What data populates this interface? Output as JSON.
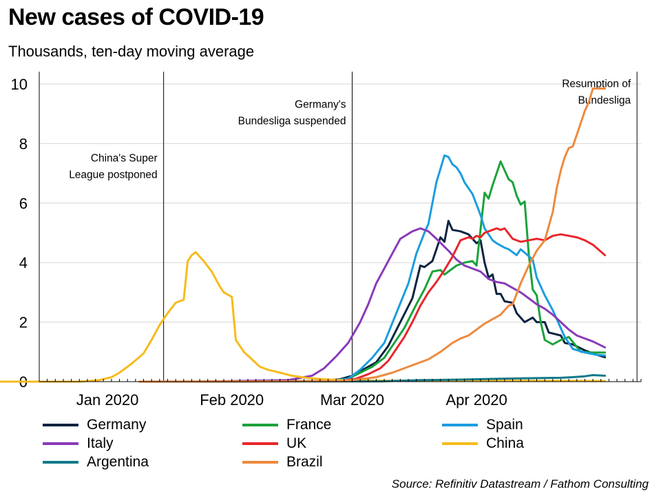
{
  "title": "New cases of COVID-19",
  "subtitle": "Thousands, ten-day moving average",
  "source": "Source: Refinitiv Datastream / Fathom Consulting",
  "chart_data": {
    "type": "line",
    "title": "New cases of COVID-19",
    "ylabel": "Thousands, ten-day moving average",
    "ylim": [
      0,
      10
    ],
    "yticks": [
      "0",
      "2",
      "4",
      "6",
      "8",
      "10"
    ],
    "xlim": [
      0,
      150
    ],
    "xticks": [
      {
        "label": "Jan 2020",
        "x": 17
      },
      {
        "label": "Feb 2020",
        "x": 48
      },
      {
        "label": "Mar 2020",
        "x": 78
      },
      {
        "label": "Apr 2020",
        "x": 109
      }
    ],
    "events": [
      {
        "x": 31,
        "lines": [
          "China's Super",
          "League postponed"
        ],
        "ytop": 7.4,
        "anchor": "end"
      },
      {
        "x": 78,
        "lines": [
          "Germany's",
          "Bundesliga suspended"
        ],
        "ytop": 9.2,
        "anchor": "end"
      },
      {
        "x": 149,
        "lines": [
          "Resumption of",
          "Bundesliga"
        ],
        "ytop": 9.9,
        "anchor": "end"
      }
    ],
    "series": [
      {
        "name": "Germany",
        "color": "#0b2440",
        "points": [
          [
            40,
            0
          ],
          [
            70,
            0.02
          ],
          [
            75,
            0.08
          ],
          [
            78,
            0.2
          ],
          [
            80,
            0.35
          ],
          [
            84,
            0.65
          ],
          [
            87,
            1.2
          ],
          [
            90,
            2.0
          ],
          [
            93,
            2.8
          ],
          [
            95,
            3.9
          ],
          [
            96,
            3.85
          ],
          [
            98,
            4.05
          ],
          [
            100,
            4.85
          ],
          [
            101,
            4.7
          ],
          [
            102,
            5.4
          ],
          [
            103,
            5.1
          ],
          [
            105,
            5.05
          ],
          [
            107,
            4.95
          ],
          [
            109,
            4.65
          ],
          [
            110,
            4.75
          ],
          [
            111,
            4.0
          ],
          [
            112,
            3.5
          ],
          [
            113,
            3.6
          ],
          [
            114,
            2.95
          ],
          [
            115,
            2.95
          ],
          [
            116,
            2.7
          ],
          [
            118,
            2.65
          ],
          [
            119,
            2.3
          ],
          [
            121,
            2.0
          ],
          [
            123,
            2.15
          ],
          [
            124,
            2.0
          ],
          [
            126,
            2.0
          ],
          [
            127,
            1.65
          ],
          [
            130,
            1.55
          ],
          [
            131,
            1.3
          ],
          [
            133,
            1.25
          ],
          [
            136,
            1.05
          ],
          [
            139,
            0.9
          ],
          [
            141,
            0.82
          ]
        ]
      },
      {
        "name": "France",
        "color": "#1aa33a",
        "points": [
          [
            40,
            0
          ],
          [
            72,
            0.02
          ],
          [
            77,
            0.1
          ],
          [
            80,
            0.3
          ],
          [
            83,
            0.5
          ],
          [
            86,
            0.8
          ],
          [
            88,
            1.2
          ],
          [
            91,
            1.8
          ],
          [
            94,
            2.6
          ],
          [
            96,
            3.1
          ],
          [
            98,
            3.7
          ],
          [
            100,
            3.75
          ],
          [
            101,
            3.6
          ],
          [
            104,
            3.9
          ],
          [
            106,
            4.0
          ],
          [
            108,
            4.05
          ],
          [
            109,
            3.9
          ],
          [
            111,
            6.35
          ],
          [
            112,
            6.15
          ],
          [
            113,
            6.6
          ],
          [
            115,
            7.4
          ],
          [
            116,
            7.1
          ],
          [
            117,
            6.8
          ],
          [
            118,
            6.7
          ],
          [
            119,
            6.25
          ],
          [
            120,
            5.95
          ],
          [
            121,
            6.05
          ],
          [
            122,
            4.3
          ],
          [
            123,
            3.1
          ],
          [
            124,
            2.9
          ],
          [
            125,
            2.0
          ],
          [
            126,
            1.4
          ],
          [
            128,
            1.25
          ],
          [
            130,
            1.4
          ],
          [
            132,
            1.5
          ],
          [
            135,
            1.0
          ],
          [
            138,
            0.98
          ],
          [
            141,
            0.98
          ]
        ]
      },
      {
        "name": "Spain",
        "color": "#1b9de0",
        "points": [
          [
            40,
            0
          ],
          [
            72,
            0.02
          ],
          [
            77,
            0.1
          ],
          [
            80,
            0.4
          ],
          [
            83,
            0.8
          ],
          [
            86,
            1.3
          ],
          [
            89,
            2.3
          ],
          [
            92,
            3.3
          ],
          [
            94,
            4.3
          ],
          [
            96,
            5.0
          ],
          [
            97,
            5.3
          ],
          [
            99,
            6.7
          ],
          [
            101,
            7.6
          ],
          [
            102,
            7.55
          ],
          [
            103,
            7.3
          ],
          [
            104,
            7.2
          ],
          [
            105,
            7.0
          ],
          [
            106,
            6.7
          ],
          [
            108,
            6.3
          ],
          [
            110,
            5.6
          ],
          [
            111,
            5.15
          ],
          [
            113,
            4.75
          ],
          [
            114,
            4.65
          ],
          [
            116,
            4.5
          ],
          [
            117,
            4.45
          ],
          [
            119,
            4.25
          ],
          [
            120,
            4.45
          ],
          [
            123,
            4.1
          ],
          [
            124,
            3.5
          ],
          [
            126,
            2.9
          ],
          [
            128,
            2.4
          ],
          [
            131,
            1.5
          ],
          [
            133,
            1.1
          ],
          [
            136,
            0.98
          ],
          [
            139,
            0.9
          ],
          [
            141,
            0.88
          ]
        ]
      },
      {
        "name": "Italy",
        "color": "#8a3ab9",
        "points": [
          [
            40,
            0
          ],
          [
            62,
            0.05
          ],
          [
            68,
            0.2
          ],
          [
            71,
            0.45
          ],
          [
            74,
            0.85
          ],
          [
            77,
            1.3
          ],
          [
            80,
            2.0
          ],
          [
            82,
            2.6
          ],
          [
            84,
            3.3
          ],
          [
            86,
            3.8
          ],
          [
            88,
            4.3
          ],
          [
            90,
            4.8
          ],
          [
            93,
            5.05
          ],
          [
            95,
            5.15
          ],
          [
            97,
            5.05
          ],
          [
            99,
            4.8
          ],
          [
            102,
            4.4
          ],
          [
            104,
            4.1
          ],
          [
            106,
            3.9
          ],
          [
            108,
            3.8
          ],
          [
            110,
            3.7
          ],
          [
            112,
            3.45
          ],
          [
            114,
            3.35
          ],
          [
            116,
            3.3
          ],
          [
            118,
            3.15
          ],
          [
            120,
            3.0
          ],
          [
            122,
            2.8
          ],
          [
            124,
            2.6
          ],
          [
            126,
            2.45
          ],
          [
            128,
            2.25
          ],
          [
            130,
            2.0
          ],
          [
            132,
            1.75
          ],
          [
            134,
            1.55
          ],
          [
            136,
            1.45
          ],
          [
            138,
            1.35
          ],
          [
            141,
            1.15
          ]
        ]
      },
      {
        "name": "UK",
        "color": "#e8262b",
        "points": [
          [
            40,
            0
          ],
          [
            75,
            0.02
          ],
          [
            79,
            0.1
          ],
          [
            82,
            0.25
          ],
          [
            85,
            0.45
          ],
          [
            87,
            0.7
          ],
          [
            89,
            1.1
          ],
          [
            91,
            1.5
          ],
          [
            93,
            2.0
          ],
          [
            95,
            2.55
          ],
          [
            97,
            3.0
          ],
          [
            99,
            3.35
          ],
          [
            101,
            3.75
          ],
          [
            103,
            4.2
          ],
          [
            105,
            4.75
          ],
          [
            107,
            4.85
          ],
          [
            108,
            4.8
          ],
          [
            109,
            4.9
          ],
          [
            110,
            4.85
          ],
          [
            111,
            5.0
          ],
          [
            113,
            5.1
          ],
          [
            114,
            5.15
          ],
          [
            115,
            5.1
          ],
          [
            116,
            5.15
          ],
          [
            118,
            4.8
          ],
          [
            120,
            4.7
          ],
          [
            122,
            4.75
          ],
          [
            124,
            4.8
          ],
          [
            126,
            4.75
          ],
          [
            128,
            4.9
          ],
          [
            130,
            4.95
          ],
          [
            132,
            4.9
          ],
          [
            134,
            4.85
          ],
          [
            136,
            4.75
          ],
          [
            138,
            4.6
          ],
          [
            141,
            4.25
          ]
        ]
      },
      {
        "name": "China",
        "color": "#f6bb1c",
        "points": [
          [
            -12,
            0
          ],
          [
            5,
            0
          ],
          [
            10,
            0
          ],
          [
            15,
            0.05
          ],
          [
            18,
            0.15
          ],
          [
            20,
            0.3
          ],
          [
            23,
            0.6
          ],
          [
            26,
            0.95
          ],
          [
            28,
            1.4
          ],
          [
            30,
            1.9
          ],
          [
            32,
            2.3
          ],
          [
            34,
            2.65
          ],
          [
            36,
            2.75
          ],
          [
            37,
            4.05
          ],
          [
            38,
            4.25
          ],
          [
            39,
            4.35
          ],
          [
            41,
            4.05
          ],
          [
            43,
            3.7
          ],
          [
            45,
            3.2
          ],
          [
            46,
            3.0
          ],
          [
            48,
            2.85
          ],
          [
            49,
            1.4
          ],
          [
            51,
            1.0
          ],
          [
            53,
            0.75
          ],
          [
            55,
            0.5
          ],
          [
            57,
            0.4
          ],
          [
            60,
            0.3
          ],
          [
            63,
            0.2
          ],
          [
            67,
            0.12
          ],
          [
            71,
            0.08
          ],
          [
            75,
            0.05
          ],
          [
            80,
            0.04
          ],
          [
            90,
            0.03
          ],
          [
            110,
            0.03
          ],
          [
            125,
            0.03
          ],
          [
            141,
            0.02
          ]
        ]
      },
      {
        "name": "Argentina",
        "color": "#0f7a8a",
        "points": [
          [
            25,
            0
          ],
          [
            85,
            0.01
          ],
          [
            95,
            0.05
          ],
          [
            105,
            0.07
          ],
          [
            115,
            0.1
          ],
          [
            125,
            0.12
          ],
          [
            130,
            0.13
          ],
          [
            133,
            0.15
          ],
          [
            136,
            0.18
          ],
          [
            138,
            0.22
          ],
          [
            141,
            0.2
          ]
        ]
      },
      {
        "name": "Brazil",
        "color": "#ee8a3e",
        "points": [
          [
            25,
            0
          ],
          [
            75,
            0.02
          ],
          [
            80,
            0.08
          ],
          [
            84,
            0.15
          ],
          [
            88,
            0.3
          ],
          [
            92,
            0.5
          ],
          [
            95,
            0.65
          ],
          [
            97,
            0.75
          ],
          [
            100,
            1.0
          ],
          [
            103,
            1.3
          ],
          [
            105,
            1.45
          ],
          [
            107,
            1.55
          ],
          [
            109,
            1.75
          ],
          [
            111,
            1.95
          ],
          [
            113,
            2.1
          ],
          [
            115,
            2.25
          ],
          [
            117,
            2.55
          ],
          [
            118,
            2.6
          ],
          [
            120,
            3.3
          ],
          [
            122,
            3.9
          ],
          [
            124,
            4.4
          ],
          [
            126,
            4.75
          ],
          [
            128,
            5.7
          ],
          [
            129,
            6.5
          ],
          [
            130,
            7.1
          ],
          [
            131,
            7.55
          ],
          [
            132,
            7.85
          ],
          [
            133,
            7.9
          ],
          [
            134,
            8.3
          ],
          [
            135,
            8.7
          ],
          [
            136,
            9.1
          ],
          [
            137,
            9.4
          ],
          [
            138,
            9.85
          ],
          [
            141,
            9.85
          ]
        ]
      }
    ]
  }
}
